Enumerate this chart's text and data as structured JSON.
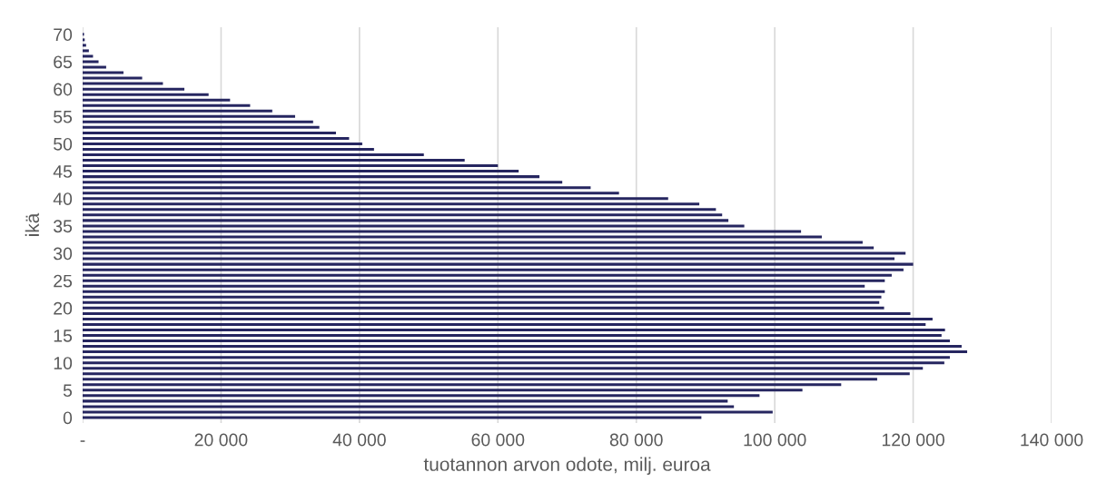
{
  "chart_data": {
    "type": "bar",
    "orientation": "horizontal",
    "xlabel": "tuotannon arvon odote, milj. euroa",
    "ylabel": "ikä",
    "categories": [
      "70",
      null,
      null,
      null,
      null,
      "65",
      null,
      null,
      null,
      null,
      "60",
      null,
      null,
      null,
      null,
      "55",
      null,
      null,
      null,
      null,
      "50",
      null,
      null,
      null,
      null,
      "45",
      null,
      null,
      null,
      null,
      "40",
      null,
      null,
      null,
      null,
      "35",
      null,
      null,
      null,
      null,
      "30",
      null,
      null,
      null,
      null,
      "25",
      null,
      null,
      null,
      null,
      "20",
      null,
      null,
      null,
      null,
      "15",
      null,
      null,
      null,
      null,
      "10",
      null,
      null,
      null,
      null,
      "5",
      null,
      null,
      null,
      null,
      "0"
    ],
    "values": [
      200,
      300,
      500,
      900,
      1500,
      2300,
      3400,
      5900,
      8600,
      11600,
      14700,
      18200,
      21300,
      24200,
      27400,
      30700,
      33300,
      34200,
      36600,
      38500,
      40400,
      42100,
      49300,
      55200,
      60000,
      63000,
      66000,
      69300,
      73400,
      77500,
      84600,
      89100,
      91500,
      92400,
      93300,
      95600,
      103800,
      106800,
      112700,
      114300,
      118900,
      117300,
      120000,
      118600,
      116900,
      115900,
      113000,
      115900,
      115400,
      115100,
      115800,
      119600,
      122800,
      121800,
      124600,
      124100,
      125300,
      127000,
      127800,
      125300,
      124500,
      121400,
      119500,
      114800,
      109600,
      104000,
      97800,
      93200,
      94100,
      99700,
      89400
    ],
    "color": "#262660",
    "xlim": [
      0,
      140000
    ],
    "xticks": [
      {
        "value": 0,
        "label": "-"
      },
      {
        "value": 20000,
        "label": "20 000"
      },
      {
        "value": 40000,
        "label": "40 000"
      },
      {
        "value": 60000,
        "label": "60 000"
      },
      {
        "value": 80000,
        "label": "80 000"
      },
      {
        "value": 100000,
        "label": "100 000"
      },
      {
        "value": 120000,
        "label": "120 000"
      },
      {
        "value": 140000,
        "label": "140 000"
      }
    ],
    "grid": "x"
  }
}
